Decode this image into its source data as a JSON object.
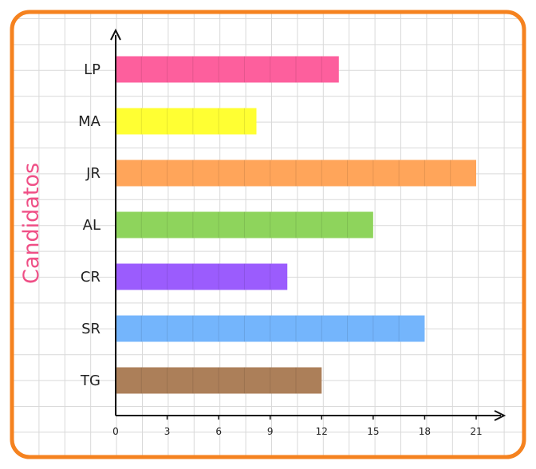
{
  "chart_data": {
    "type": "bar",
    "orientation": "horizontal",
    "categories": [
      "LP",
      "MA",
      "JR",
      "AL",
      "CR",
      "SR",
      "TG"
    ],
    "values": [
      13,
      8.2,
      21,
      15,
      10,
      18,
      12
    ],
    "bar_colors": [
      "#fd5f9d",
      "#ffff33",
      "#ffa55a",
      "#8ed45c",
      "#9b5cfd",
      "#74b5fc",
      "#ac7f59"
    ],
    "xlabel": "",
    "ylabel": "Candidatos",
    "xticks": [
      "0",
      "3",
      "6",
      "9",
      "12",
      "15",
      "18",
      "21"
    ],
    "xlim": [
      0,
      21
    ],
    "grid": true,
    "frame_color": "#f5821f",
    "ylabel_color": "#ef4f86"
  }
}
